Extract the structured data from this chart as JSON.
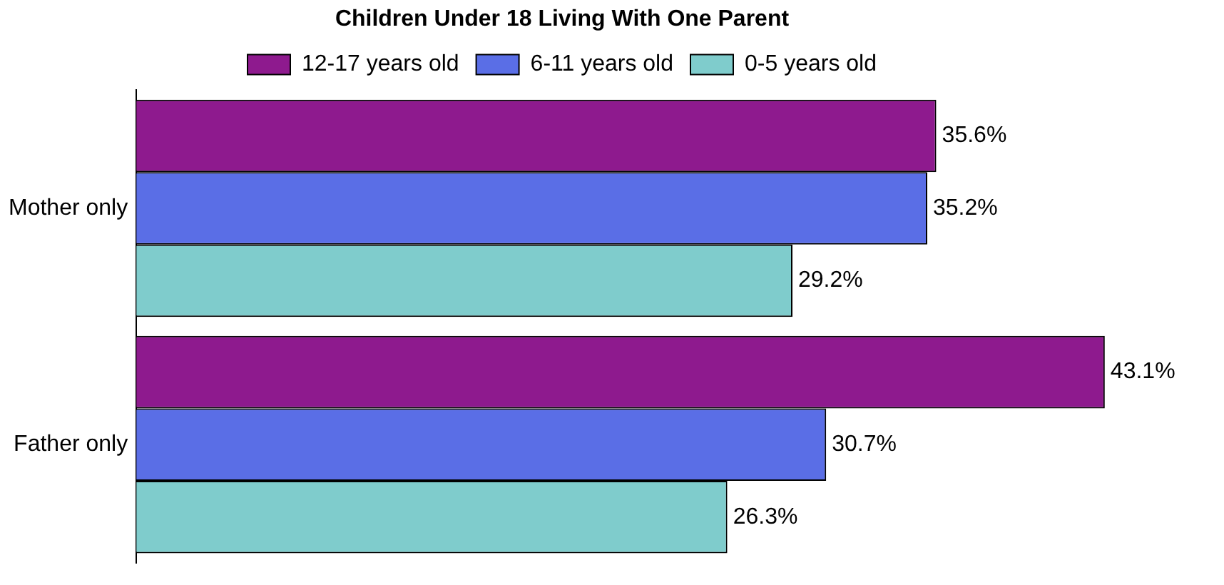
{
  "chart_data": {
    "type": "bar",
    "orientation": "horizontal",
    "title": "Children Under 18 Living With One Parent",
    "categories": [
      "Mother only",
      "Father only"
    ],
    "series": [
      {
        "name": "12-17 years old",
        "color": "#8e1a8e",
        "values": [
          35.6,
          43.1
        ],
        "value_labels": [
          "35.6%",
          "43.1%"
        ]
      },
      {
        "name": "6-11 years old",
        "color": "#5a6ee6",
        "values": [
          35.2,
          30.7
        ],
        "value_labels": [
          "35.2%",
          "30.7%"
        ]
      },
      {
        "name": "0-5 years old",
        "color": "#7fcccc",
        "values": [
          29.2,
          26.3
        ],
        "value_labels": [
          "29.2%",
          "26.3%"
        ]
      }
    ],
    "legend": "top",
    "tick_labels": "y"
  }
}
